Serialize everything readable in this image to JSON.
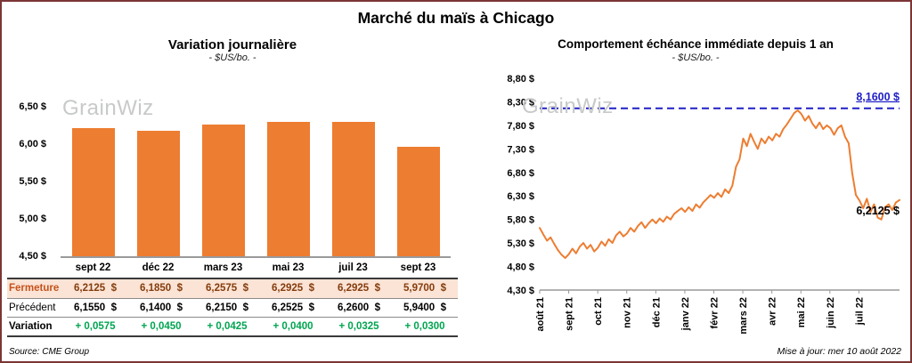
{
  "page_title": "Marché du maïs à Chicago",
  "source_note": "Source: CME Group",
  "update_note": "Mise à jour: mer 10 août 2022",
  "watermark": "GrainWiz",
  "colors": {
    "accent_orange": "#ED7D31",
    "reference_blue": "#2020C8",
    "frame_maroon": "#7B3535",
    "fermeture_bg": "#FBE3D5",
    "fermeture_label": "#C4531B",
    "fermeture_value": "#843C0C",
    "variation_green": "#00A550",
    "watermark_gray": "#C7CAC9"
  },
  "chart_data": [
    {
      "type": "bar",
      "title": "Variation journalière",
      "subtitle": "- $US/bo. -",
      "categories": [
        "sept 22",
        "déc 22",
        "mars 23",
        "mai 23",
        "juil 23",
        "sept 23"
      ],
      "values": [
        6.2125,
        6.185,
        6.2575,
        6.2925,
        6.2925,
        5.97
      ],
      "ylim": [
        4.5,
        6.5
      ],
      "ytick_values": [
        6.5,
        6.0,
        5.5,
        5.0,
        4.5
      ],
      "ytick_labels": [
        "6,50 $",
        "6,00 $",
        "5,50 $",
        "5,00 $",
        "4,50 $"
      ],
      "grid": false,
      "legend": "none"
    },
    {
      "type": "line",
      "title": "Comportement échéance immédiate depuis 1 an",
      "subtitle": "- $US/bo. -",
      "x_labels": [
        "août 21",
        "sept 21",
        "oct 21",
        "nov 21",
        "déc 21",
        "janv 22",
        "févr 22",
        "mars 22",
        "avr 22",
        "mai 22",
        "juin 22",
        "juil 22"
      ],
      "ylim": [
        4.3,
        8.8
      ],
      "ytick_values": [
        8.8,
        8.3,
        7.8,
        7.3,
        6.8,
        6.3,
        5.8,
        5.3,
        4.8,
        4.3
      ],
      "ytick_labels": [
        "8,80 $",
        "8,30 $",
        "7,80 $",
        "7,30 $",
        "6,80 $",
        "6,30 $",
        "5,80 $",
        "5,30 $",
        "4,80 $",
        "4,30 $"
      ],
      "reference_line": {
        "value": 8.16,
        "label": "8,1600 $"
      },
      "last_point_label": "6,2125 $",
      "grid": false,
      "legend": "none",
      "values": [
        5.62,
        5.48,
        5.35,
        5.42,
        5.28,
        5.15,
        5.05,
        4.98,
        5.06,
        5.18,
        5.08,
        5.22,
        5.3,
        5.18,
        5.26,
        5.12,
        5.2,
        5.33,
        5.24,
        5.38,
        5.3,
        5.46,
        5.54,
        5.44,
        5.5,
        5.62,
        5.54,
        5.66,
        5.74,
        5.62,
        5.72,
        5.8,
        5.72,
        5.82,
        5.75,
        5.86,
        5.8,
        5.92,
        5.98,
        6.04,
        5.96,
        6.06,
        5.98,
        6.12,
        6.05,
        6.16,
        6.24,
        6.32,
        6.26,
        6.36,
        6.28,
        6.44,
        6.36,
        6.52,
        6.92,
        7.08,
        7.52,
        7.36,
        7.62,
        7.45,
        7.3,
        7.52,
        7.42,
        7.56,
        7.48,
        7.62,
        7.56,
        7.72,
        7.82,
        7.94,
        8.06,
        8.12,
        8.04,
        7.9,
        8.0,
        7.84,
        7.74,
        7.86,
        7.72,
        7.8,
        7.74,
        7.6,
        7.74,
        7.8,
        7.56,
        7.42,
        6.78,
        6.32,
        6.2,
        6.04,
        6.24,
        5.96,
        6.12,
        5.84,
        5.8,
        6.06,
        6.12,
        6.0,
        6.16,
        6.2125
      ]
    }
  ],
  "table": {
    "rows": [
      {
        "label": "Fermeture",
        "style": "fermeture",
        "values": [
          "6,2125  $",
          "6,1850  $",
          "6,2575  $",
          "6,2925  $",
          "6,2925  $",
          "5,9700  $"
        ]
      },
      {
        "label": "Précédent",
        "style": "precedent",
        "values": [
          "6,1550  $",
          "6,1400  $",
          "6,2150  $",
          "6,2525  $",
          "6,2600  $",
          "5,9400  $"
        ]
      },
      {
        "label": "Variation",
        "style": "variation",
        "values": [
          "+ 0,0575",
          "+ 0,0450",
          "+ 0,0425",
          "+ 0,0400",
          "+ 0,0325",
          "+ 0,0300"
        ]
      }
    ]
  }
}
